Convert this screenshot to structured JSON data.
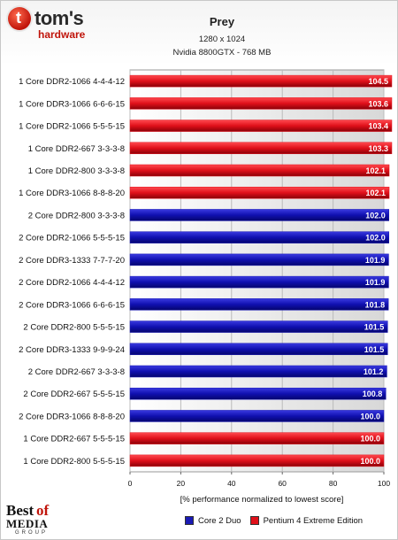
{
  "logo": {
    "mark": "t",
    "main": "tom's",
    "sub": "hardware"
  },
  "footer_logo": {
    "best": "Best",
    "of": "of",
    "media": "MEDIA",
    "group": "GROUP"
  },
  "colors": {
    "core2duo": "#1a1ab4",
    "pentium4": "#e0101a",
    "grid": "#d8d8d8",
    "plot_bg": "#c4c4c4"
  },
  "chart_data": {
    "type": "bar",
    "orientation": "horizontal",
    "title": "Prey",
    "subtitle_lines": [
      "1280 x 1024",
      "Nvidia 8800GTX - 768 MB"
    ],
    "xlabel": "[% performance normalized to lowest score]",
    "xlim": [
      0,
      100
    ],
    "xticks": [
      0,
      20,
      40,
      60,
      80,
      100
    ],
    "grid": true,
    "legend_position": "bottom-right",
    "legend": [
      {
        "name": "Core 2 Duo",
        "color": "#1a1ab4"
      },
      {
        "name": "Pentium 4 Extreme Edition",
        "color": "#e0101a"
      }
    ],
    "categories": [
      "1 Core DDR2-1066 4-4-4-12",
      "1 Core DDR3-1066 6-6-6-15",
      "1 Core DDR2-1066 5-5-5-15",
      "1 Core DDR2-667 3-3-3-8",
      "1 Core DDR2-800 3-3-3-8",
      "1 Core DDR3-1066 8-8-8-20",
      "2 Core DDR2-800 3-3-3-8",
      "2 Core DDR2-1066 5-5-5-15",
      "2 Core DDR3-1333 7-7-7-20",
      "2 Core DDR2-1066 4-4-4-12",
      "2 Core DDR3-1066 6-6-6-15",
      "2 Core DDR2-800 5-5-5-15",
      "2 Core DDR3-1333 9-9-9-24",
      "2 Core DDR2-667 3-3-3-8",
      "2 Core DDR2-667 5-5-5-15",
      "2 Core DDR3-1066 8-8-8-20",
      "1 Core DDR2-667 5-5-5-15",
      "1 Core DDR2-800 5-5-5-15"
    ],
    "values": [
      104.5,
      103.6,
      103.4,
      103.3,
      102.1,
      102.1,
      102.0,
      102.0,
      101.9,
      101.9,
      101.8,
      101.5,
      101.5,
      101.2,
      100.8,
      100.0,
      100.0,
      100.0
    ],
    "value_labels": [
      "104.5",
      "103.6",
      "103.4",
      "103.3",
      "102.1",
      "102.1",
      "102.0",
      "102.0",
      "101.9",
      "101.9",
      "101.8",
      "101.5",
      "101.5",
      "101.2",
      "100.8",
      "100.0",
      "100.0",
      "100.0"
    ],
    "series_of_bar": [
      "Pentium 4 Extreme Edition",
      "Pentium 4 Extreme Edition",
      "Pentium 4 Extreme Edition",
      "Pentium 4 Extreme Edition",
      "Pentium 4 Extreme Edition",
      "Pentium 4 Extreme Edition",
      "Core 2 Duo",
      "Core 2 Duo",
      "Core 2 Duo",
      "Core 2 Duo",
      "Core 2 Duo",
      "Core 2 Duo",
      "Core 2 Duo",
      "Core 2 Duo",
      "Core 2 Duo",
      "Core 2 Duo",
      "Pentium 4 Extreme Edition",
      "Pentium 4 Extreme Edition"
    ]
  }
}
